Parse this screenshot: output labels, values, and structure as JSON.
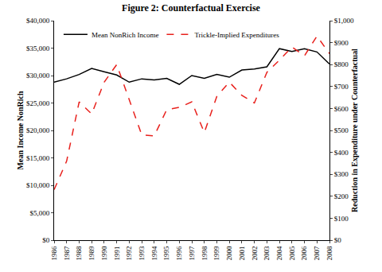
{
  "chart_data": {
    "type": "line",
    "title": "Figure 2: Counterfactual Exercise",
    "y_label": "Mean Income NonRich",
    "y2_label": "Reduction in Expenditure under Counterfactual",
    "categories": [
      "1986",
      "1987",
      "1988",
      "1989",
      "1990",
      "1991",
      "1992",
      "1993",
      "1994",
      "1995",
      "1996",
      "1997",
      "1998",
      "1999",
      "2000",
      "2001",
      "2002",
      "2003",
      "2004",
      "2005",
      "2006",
      "2007",
      "2008"
    ],
    "series": [
      {
        "name": "Mean NonRich Income",
        "color": "#000000",
        "line_style": "solid",
        "values": [
          28800,
          29400,
          30200,
          31300,
          30700,
          30100,
          28800,
          29400,
          29200,
          29500,
          28400,
          30000,
          29500,
          30200,
          29700,
          31000,
          31200,
          31600,
          34900,
          34400,
          34900,
          34300,
          32100
        ]
      },
      {
        "name": "Trickle-Implied Expenditures",
        "color": "#e8211d",
        "line_style": "dashed",
        "axis": "y2",
        "values": [
          230,
          360,
          630,
          575,
          720,
          800,
          640,
          480,
          475,
          595,
          605,
          630,
          490,
          655,
          720,
          660,
          625,
          765,
          820,
          880,
          840,
          930,
          850
        ]
      }
    ],
    "ylim": [
      0,
      40000
    ],
    "yticks": [
      {
        "value": 0,
        "label": "$0"
      },
      {
        "value": 5000,
        "label": "$5,000"
      },
      {
        "value": 10000,
        "label": "$10,000"
      },
      {
        "value": 15000,
        "label": "$15,000"
      },
      {
        "value": 20000,
        "label": "$20,000"
      },
      {
        "value": 25000,
        "label": "$25,000"
      },
      {
        "value": 30000,
        "label": "$30,000"
      },
      {
        "value": 35000,
        "label": "$35,000"
      },
      {
        "value": 40000,
        "label": "$40,000"
      }
    ],
    "y2lim": [
      0,
      1000
    ],
    "y2ticks": [
      {
        "value": 0,
        "label": "$0"
      },
      {
        "value": 100,
        "label": "$100"
      },
      {
        "value": 200,
        "label": "$200"
      },
      {
        "value": 300,
        "label": "$300"
      },
      {
        "value": 400,
        "label": "$400"
      },
      {
        "value": 500,
        "label": "$500"
      },
      {
        "value": 600,
        "label": "$600"
      },
      {
        "value": 700,
        "label": "$700"
      },
      {
        "value": 800,
        "label": "$800"
      },
      {
        "value": 900,
        "label": "$900"
      },
      {
        "value": 1000,
        "label": "$1,000"
      }
    ],
    "grid": false,
    "legend": "top-left"
  }
}
